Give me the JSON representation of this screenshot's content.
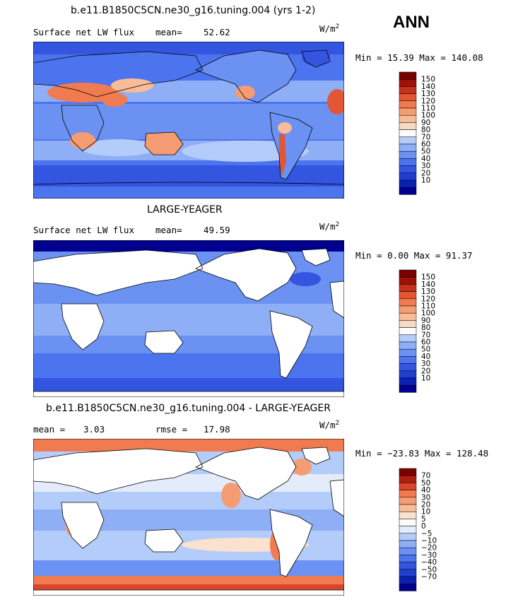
{
  "season": "ANN",
  "units_label": "W/m",
  "units_sup": "2",
  "colors": {
    "abs_scale": [
      "#00008e",
      "#0a22b4",
      "#1f3fd0",
      "#3355e0",
      "#4c74ee",
      "#6b92f2",
      "#8eaef6",
      "#b4ccfa",
      "#fbfbfb",
      "#fad9c2",
      "#f9bc98",
      "#f59c72",
      "#f07b50",
      "#e25634",
      "#c7301c",
      "#9c1206",
      "#7a0000"
    ],
    "diff_scale": [
      "#00008e",
      "#0a22b4",
      "#1f3fd0",
      "#3355e0",
      "#4c74ee",
      "#6b92f2",
      "#8eaef6",
      "#b4ccfa",
      "#e4ecfb",
      "#fbfbfb",
      "#fbe2cf",
      "#f9bc98",
      "#f59c72",
      "#f07b50",
      "#d9452a",
      "#b01e10",
      "#7a0000"
    ],
    "land": "#ffffff",
    "coast": "#000000"
  },
  "chart_data": [
    {
      "type": "heatmap",
      "title": "b.e11.B1850C5CN.ne30_g16.tuning.004 (yrs 1-2)",
      "left_label": "Surface net LW flux",
      "stat_label": "mean=",
      "stat_value": "52.62",
      "min_max": "Min =  15.39 Max = 140.08",
      "levels": [
        "150",
        "140",
        "130",
        "120",
        "110",
        "100",
        "90",
        "80",
        "70",
        "60",
        "50",
        "40",
        "30",
        "20",
        "10"
      ]
    },
    {
      "type": "heatmap",
      "title": "LARGE-YEAGER",
      "left_label": "Surface net LW flux",
      "stat_label": "mean=",
      "stat_value": "49.59",
      "min_max": "Min =   0.00 Max =  91.37",
      "levels": [
        "150",
        "140",
        "130",
        "120",
        "110",
        "100",
        "90",
        "80",
        "70",
        "60",
        "50",
        "40",
        "30",
        "20",
        "10"
      ]
    },
    {
      "type": "heatmap",
      "title": "b.e11.B1850C5CN.ne30_g16.tuning.004 - LARGE-YEAGER",
      "left_label": "mean =",
      "left_value": "3.03",
      "stat_label": "rmse =",
      "stat_value": "17.98",
      "min_max": "Min = −23.83 Max = 128.48",
      "levels": [
        "70",
        "50",
        "40",
        "30",
        "20",
        "10",
        "5",
        "0",
        "−5",
        "−10",
        "−20",
        "−30",
        "−40",
        "−50",
        "−70"
      ]
    }
  ]
}
